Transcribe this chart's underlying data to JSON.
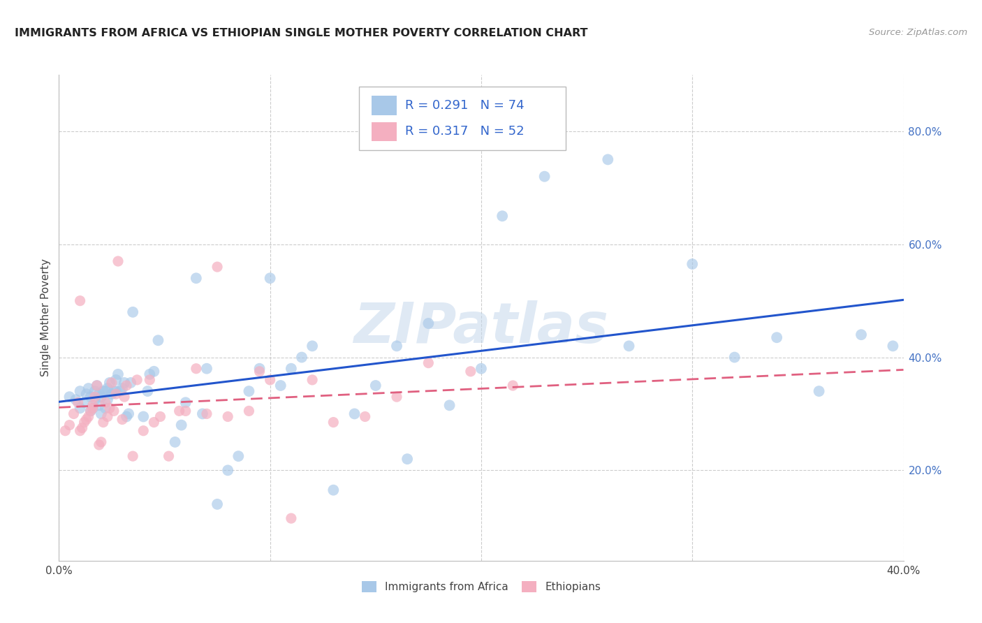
{
  "title": "IMMIGRANTS FROM AFRICA VS ETHIOPIAN SINGLE MOTHER POVERTY CORRELATION CHART",
  "source": "Source: ZipAtlas.com",
  "ylabel": "Single Mother Poverty",
  "right_ytick_vals": [
    0.2,
    0.4,
    0.6,
    0.8
  ],
  "xlim": [
    0.0,
    0.4
  ],
  "ylim": [
    0.04,
    0.9
  ],
  "africa_color": "#a8c8e8",
  "ethiopia_color": "#f4afc0",
  "africa_line_color": "#2255cc",
  "ethiopia_line_color": "#e06080",
  "legend_text_color": "#3366cc",
  "watermark": "ZIPatlas",
  "africa_r": "0.291",
  "africa_n": "74",
  "ethiopia_r": "0.317",
  "ethiopia_n": "52",
  "africa_scatter_x": [
    0.005,
    0.008,
    0.01,
    0.01,
    0.012,
    0.013,
    0.014,
    0.015,
    0.015,
    0.016,
    0.017,
    0.017,
    0.018,
    0.019,
    0.019,
    0.02,
    0.02,
    0.021,
    0.022,
    0.022,
    0.023,
    0.023,
    0.024,
    0.025,
    0.026,
    0.027,
    0.027,
    0.028,
    0.029,
    0.03,
    0.031,
    0.032,
    0.033,
    0.034,
    0.035,
    0.04,
    0.042,
    0.043,
    0.045,
    0.047,
    0.055,
    0.058,
    0.06,
    0.065,
    0.068,
    0.07,
    0.075,
    0.08,
    0.085,
    0.09,
    0.095,
    0.1,
    0.105,
    0.11,
    0.115,
    0.12,
    0.13,
    0.14,
    0.15,
    0.16,
    0.165,
    0.175,
    0.185,
    0.2,
    0.21,
    0.23,
    0.26,
    0.27,
    0.3,
    0.32,
    0.34,
    0.36,
    0.38,
    0.395
  ],
  "africa_scatter_y": [
    0.33,
    0.325,
    0.31,
    0.34,
    0.32,
    0.335,
    0.345,
    0.305,
    0.33,
    0.31,
    0.325,
    0.34,
    0.35,
    0.335,
    0.315,
    0.3,
    0.33,
    0.34,
    0.31,
    0.34,
    0.325,
    0.345,
    0.355,
    0.335,
    0.34,
    0.34,
    0.36,
    0.37,
    0.34,
    0.345,
    0.355,
    0.295,
    0.3,
    0.355,
    0.48,
    0.295,
    0.34,
    0.37,
    0.375,
    0.43,
    0.25,
    0.28,
    0.32,
    0.54,
    0.3,
    0.38,
    0.14,
    0.2,
    0.225,
    0.34,
    0.38,
    0.54,
    0.35,
    0.38,
    0.4,
    0.42,
    0.165,
    0.3,
    0.35,
    0.42,
    0.22,
    0.46,
    0.315,
    0.38,
    0.65,
    0.72,
    0.75,
    0.42,
    0.565,
    0.4,
    0.435,
    0.34,
    0.44,
    0.42
  ],
  "ethiopia_scatter_x": [
    0.003,
    0.005,
    0.007,
    0.009,
    0.01,
    0.01,
    0.011,
    0.012,
    0.013,
    0.014,
    0.015,
    0.016,
    0.016,
    0.017,
    0.018,
    0.019,
    0.02,
    0.021,
    0.022,
    0.023,
    0.024,
    0.025,
    0.026,
    0.027,
    0.028,
    0.03,
    0.031,
    0.032,
    0.035,
    0.037,
    0.04,
    0.043,
    0.045,
    0.048,
    0.052,
    0.057,
    0.06,
    0.065,
    0.07,
    0.075,
    0.08,
    0.09,
    0.095,
    0.1,
    0.11,
    0.12,
    0.13,
    0.145,
    0.16,
    0.175,
    0.195,
    0.215
  ],
  "ethiopia_scatter_y": [
    0.27,
    0.28,
    0.3,
    0.32,
    0.5,
    0.27,
    0.275,
    0.285,
    0.29,
    0.295,
    0.305,
    0.31,
    0.315,
    0.33,
    0.35,
    0.245,
    0.25,
    0.285,
    0.32,
    0.295,
    0.31,
    0.355,
    0.305,
    0.335,
    0.57,
    0.29,
    0.33,
    0.35,
    0.225,
    0.36,
    0.27,
    0.36,
    0.285,
    0.295,
    0.225,
    0.305,
    0.305,
    0.38,
    0.3,
    0.56,
    0.295,
    0.305,
    0.375,
    0.36,
    0.115,
    0.36,
    0.285,
    0.295,
    0.33,
    0.39,
    0.375,
    0.35
  ]
}
